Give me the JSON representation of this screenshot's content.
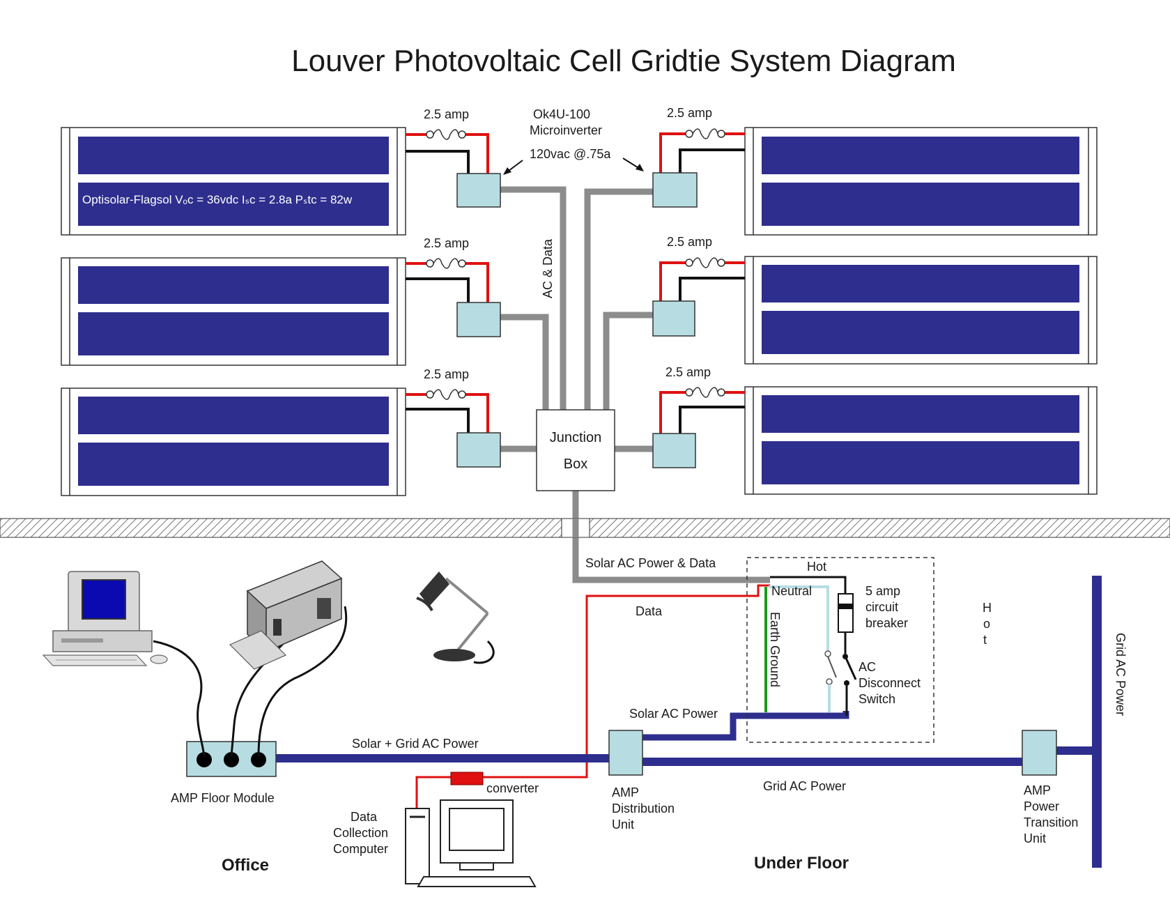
{
  "title": "Louver Photovoltaic Cell Gridtie System Diagram",
  "panels": {
    "left": [
      {
        "fuse_label": "2.5 amp",
        "module_label": "Optisolar-Flagsol  Vₒc = 36vdc Iₛc = 2.8a Pₛtc = 82w"
      },
      {
        "fuse_label": "2.5 amp"
      },
      {
        "fuse_label": "2.5 amp"
      }
    ],
    "right": [
      {
        "fuse_label": "2.5 amp"
      },
      {
        "fuse_label": "2.5 amp"
      },
      {
        "fuse_label": "2.5 amp"
      }
    ]
  },
  "microinverter": {
    "line1": "Ok4U-100",
    "line2": "Microinverter",
    "line3": "120vac @.75a"
  },
  "ac_data_label": "AC & Data",
  "junction_box": {
    "line1": "Junction",
    "line2": "Box"
  },
  "labels": {
    "solar_ac_power_data": "Solar AC Power & Data",
    "data": "Data",
    "hot_top": "Hot",
    "neutral": "Neutral",
    "earth_ground": "Earth Ground",
    "breaker_1": "5 amp",
    "breaker_2": "circuit",
    "breaker_3": "breaker",
    "switch_1": "AC",
    "switch_2": "Disconnect",
    "switch_3": "Switch",
    "hot_side_1": "H",
    "hot_side_2": "o",
    "hot_side_3": "t",
    "grid_ac_power_vertical": "Grid AC Power",
    "solar_ac_power": "Solar AC Power",
    "solar_grid_ac_power": "Solar + Grid AC Power",
    "grid_ac_power": "Grid  AC Power",
    "converter": "converter",
    "amp_floor_module": "AMP Floor Module",
    "data_collection_1": "Data",
    "data_collection_2": "Collection",
    "data_collection_3": "Computer",
    "amp_dist_1": "AMP",
    "amp_dist_2": "Distribution",
    "amp_dist_3": "Unit",
    "amp_ptu_1": "AMP",
    "amp_ptu_2": "Power",
    "amp_ptu_3": "Transition",
    "amp_ptu_4": "Unit",
    "office": "Office",
    "under_floor": "Under Floor"
  },
  "colors": {
    "panel_blue": "#2e2e8e",
    "inverter_fill": "#b7dde2",
    "ac_wire_gray": "#8c8c8c",
    "dc_positive_red": "#e01010",
    "earth_green": "#1a9a1a"
  }
}
